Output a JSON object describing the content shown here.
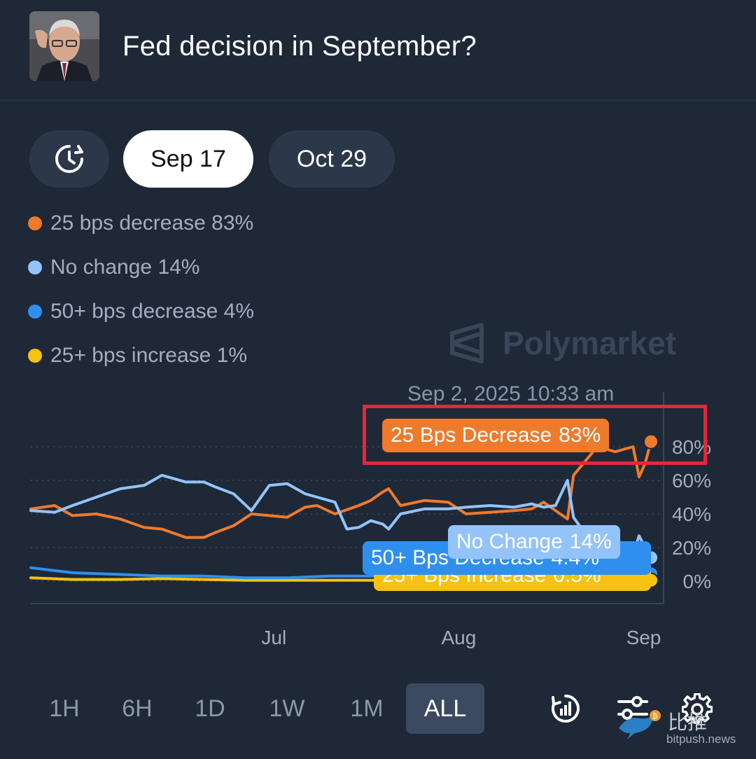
{
  "header": {
    "title": "Fed decision in September?"
  },
  "date_tabs": [
    {
      "label": "Sep 17",
      "active": true
    },
    {
      "label": "Oct 29",
      "active": false
    }
  ],
  "legend": [
    {
      "label": "25 bps decrease 83%",
      "color": "#ee7a2c"
    },
    {
      "label": "No change 14%",
      "color": "#93c3f8"
    },
    {
      "label": "50+ bps decrease 4%",
      "color": "#2f8fee"
    },
    {
      "label": "25+ bps increase 1%",
      "color": "#f5c211"
    }
  ],
  "watermark": "Polymarket",
  "hover_timestamp": "Sep 2, 2025 10:33 am",
  "tooltips": {
    "orange": {
      "name": "25 Bps Decrease",
      "value": "83%"
    },
    "light": {
      "name": "No Change",
      "value": "14%"
    },
    "blue": {
      "name": "50+ Bps Decrease",
      "value": "4.4%"
    },
    "yellow": {
      "name": "25+ Bps Increase",
      "value": "0.5%"
    }
  },
  "chart_data": {
    "type": "line",
    "x_ticks": [
      "Jul",
      "Aug",
      "Sep"
    ],
    "y_ticks": [
      "0%",
      "20%",
      "40%",
      "60%",
      "80%"
    ],
    "ylim": [
      0,
      85
    ],
    "x_range": [
      "2025-05-21",
      "2025-09-02"
    ],
    "series": [
      {
        "name": "25 bps decrease",
        "color": "#ee7a2c",
        "points": [
          [
            "2025-05-21",
            43
          ],
          [
            "2025-05-25",
            45
          ],
          [
            "2025-05-28",
            39
          ],
          [
            "2025-06-01",
            40
          ],
          [
            "2025-06-05",
            37
          ],
          [
            "2025-06-09",
            32
          ],
          [
            "2025-06-12",
            31
          ],
          [
            "2025-06-16",
            26
          ],
          [
            "2025-06-19",
            26
          ],
          [
            "2025-06-21",
            29
          ],
          [
            "2025-06-24",
            33
          ],
          [
            "2025-06-27",
            40
          ],
          [
            "2025-06-30",
            39
          ],
          [
            "2025-07-03",
            38
          ],
          [
            "2025-07-06",
            44
          ],
          [
            "2025-07-08",
            45
          ],
          [
            "2025-07-11",
            40
          ],
          [
            "2025-07-15",
            45
          ],
          [
            "2025-07-17",
            48
          ],
          [
            "2025-07-19",
            53
          ],
          [
            "2025-07-20",
            55
          ],
          [
            "2025-07-22",
            45
          ],
          [
            "2025-07-26",
            48
          ],
          [
            "2025-07-30",
            47
          ],
          [
            "2025-08-02",
            40
          ],
          [
            "2025-08-06",
            41
          ],
          [
            "2025-08-10",
            42
          ],
          [
            "2025-08-13",
            43
          ],
          [
            "2025-08-15",
            47
          ],
          [
            "2025-08-17",
            42
          ],
          [
            "2025-08-19",
            37
          ],
          [
            "2025-08-20",
            63
          ],
          [
            "2025-08-24",
            80
          ],
          [
            "2025-08-27",
            77
          ],
          [
            "2025-08-30",
            80
          ],
          [
            "2025-08-31",
            62
          ],
          [
            "2025-09-01",
            70
          ],
          [
            "2025-09-02",
            83
          ]
        ]
      },
      {
        "name": "No change",
        "color": "#93c3f8",
        "points": [
          [
            "2025-05-21",
            42
          ],
          [
            "2025-05-25",
            41
          ],
          [
            "2025-05-28",
            45
          ],
          [
            "2025-06-01",
            50
          ],
          [
            "2025-06-05",
            55
          ],
          [
            "2025-06-09",
            57
          ],
          [
            "2025-06-12",
            63
          ],
          [
            "2025-06-16",
            59
          ],
          [
            "2025-06-19",
            59
          ],
          [
            "2025-06-21",
            56
          ],
          [
            "2025-06-24",
            52
          ],
          [
            "2025-06-27",
            42
          ],
          [
            "2025-06-30",
            57
          ],
          [
            "2025-07-03",
            58
          ],
          [
            "2025-07-06",
            52
          ],
          [
            "2025-07-08",
            50
          ],
          [
            "2025-07-11",
            47
          ],
          [
            "2025-07-13",
            31
          ],
          [
            "2025-07-15",
            32
          ],
          [
            "2025-07-17",
            36
          ],
          [
            "2025-07-19",
            34
          ],
          [
            "2025-07-20",
            31
          ],
          [
            "2025-07-22",
            40
          ],
          [
            "2025-07-26",
            43
          ],
          [
            "2025-07-30",
            43
          ],
          [
            "2025-08-02",
            44
          ],
          [
            "2025-08-06",
            45
          ],
          [
            "2025-08-10",
            44
          ],
          [
            "2025-08-13",
            46
          ],
          [
            "2025-08-15",
            44
          ],
          [
            "2025-08-17",
            45
          ],
          [
            "2025-08-19",
            60
          ],
          [
            "2025-08-20",
            38
          ],
          [
            "2025-08-24",
            18
          ],
          [
            "2025-08-27",
            21
          ],
          [
            "2025-08-30",
            16
          ],
          [
            "2025-08-31",
            27
          ],
          [
            "2025-09-01",
            20
          ],
          [
            "2025-09-02",
            14
          ]
        ]
      },
      {
        "name": "50+ bps decrease",
        "color": "#2f8fee",
        "points": [
          [
            "2025-05-21",
            8
          ],
          [
            "2025-05-28",
            5
          ],
          [
            "2025-06-05",
            4
          ],
          [
            "2025-06-12",
            3
          ],
          [
            "2025-06-19",
            3
          ],
          [
            "2025-06-26",
            2
          ],
          [
            "2025-07-03",
            2
          ],
          [
            "2025-07-10",
            3
          ],
          [
            "2025-07-17",
            3
          ],
          [
            "2025-07-24",
            5
          ],
          [
            "2025-07-31",
            5
          ],
          [
            "2025-08-07",
            6
          ],
          [
            "2025-08-14",
            5
          ],
          [
            "2025-08-20",
            7
          ],
          [
            "2025-08-27",
            6
          ],
          [
            "2025-09-02",
            4.4
          ]
        ]
      },
      {
        "name": "25+ bps increase",
        "color": "#f5c211",
        "points": [
          [
            "2025-05-21",
            2
          ],
          [
            "2025-05-28",
            1
          ],
          [
            "2025-06-05",
            1
          ],
          [
            "2025-06-12",
            1.5
          ],
          [
            "2025-06-19",
            1
          ],
          [
            "2025-06-26",
            0.5
          ],
          [
            "2025-07-03",
            0.5
          ],
          [
            "2025-07-10",
            0.5
          ],
          [
            "2025-07-17",
            0.5
          ],
          [
            "2025-07-24",
            0.5
          ],
          [
            "2025-07-31",
            0.5
          ],
          [
            "2025-08-07",
            0.5
          ],
          [
            "2025-08-14",
            0.5
          ],
          [
            "2025-08-21",
            0.5
          ],
          [
            "2025-08-28",
            0.5
          ],
          [
            "2025-09-02",
            0.5
          ]
        ]
      }
    ]
  },
  "timeframes": [
    {
      "label": "1H",
      "active": false
    },
    {
      "label": "6H",
      "active": false
    },
    {
      "label": "1D",
      "active": false
    },
    {
      "label": "1W",
      "active": false
    },
    {
      "label": "1M",
      "active": false
    },
    {
      "label": "ALL",
      "active": true
    }
  ],
  "icons": [
    "history-icon",
    "replay-chart-icon",
    "filter-sliders-icon",
    "settings-gear-icon"
  ],
  "brand": {
    "name_cn": "比推",
    "url": "bitpush.news"
  }
}
